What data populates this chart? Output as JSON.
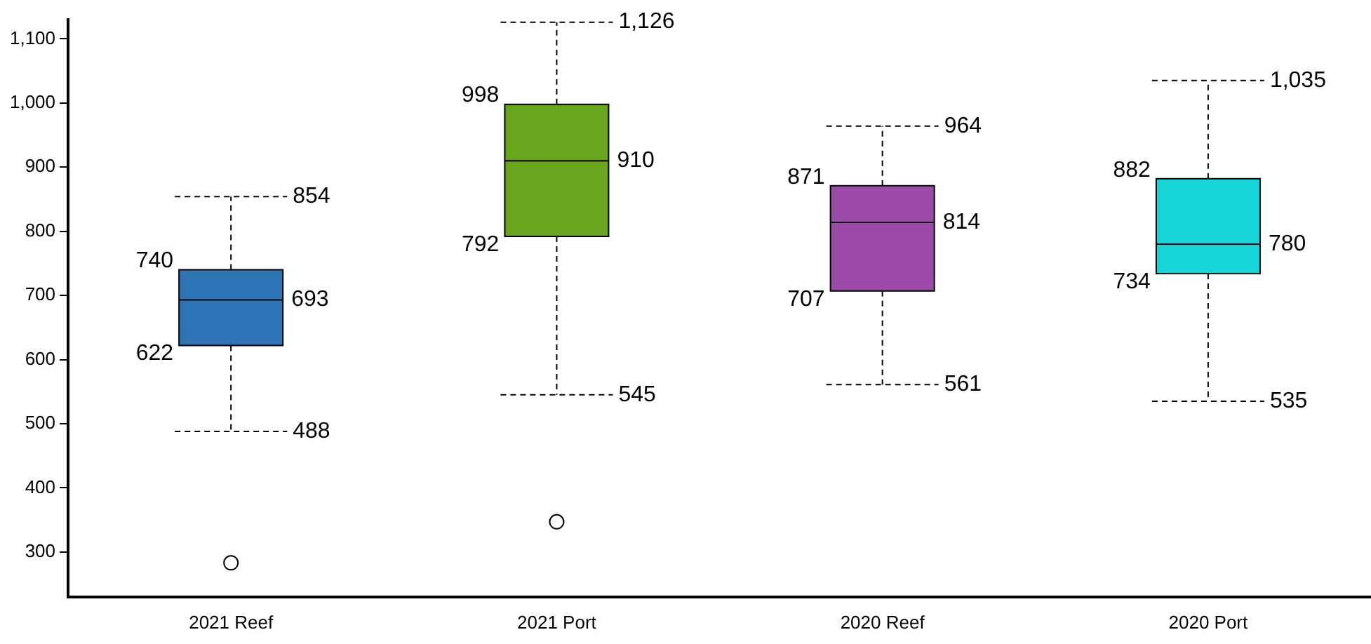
{
  "chart_data": {
    "type": "box",
    "categories": [
      "2021 Reef",
      "2021 Port",
      "2020 Reef",
      "2020 Port"
    ],
    "colors": [
      "#2e75b6",
      "#66a51c",
      "#9b4aa8",
      "#17d4d8"
    ],
    "boxes": [
      {
        "low": 488,
        "q1": 622,
        "median": 693,
        "q3": 740,
        "high": 854,
        "outliers": [
          283
        ]
      },
      {
        "low": 545,
        "q1": 792,
        "median": 910,
        "q3": 998,
        "high": 1126,
        "outliers": [
          347
        ]
      },
      {
        "low": 561,
        "q1": 707,
        "median": 814,
        "q3": 871,
        "high": 964
      },
      {
        "low": 535,
        "q1": 734,
        "median": 780,
        "q3": 882,
        "high": 1035
      }
    ],
    "ylim": [
      230,
      1130
    ],
    "yticks": [
      {
        "value": 300,
        "label": "300"
      },
      {
        "value": 400,
        "label": "400"
      },
      {
        "value": 500,
        "label": "500"
      },
      {
        "value": 600,
        "label": "600"
      },
      {
        "value": 700,
        "label": "700"
      },
      {
        "value": 800,
        "label": "800"
      },
      {
        "value": 900,
        "label": "900"
      },
      {
        "value": 1000,
        "label": "1,000"
      },
      {
        "value": 1100,
        "label": "1,100"
      }
    ],
    "annotations": [
      {
        "text": "854",
        "x": "2021 Reef",
        "y": 854
      },
      {
        "text": "740",
        "x": "2021 Reef",
        "y": 740
      },
      {
        "text": "693",
        "x": "2021 Reef",
        "y": 693
      },
      {
        "text": "622",
        "x": "2021 Reef",
        "y": 622
      },
      {
        "text": "488",
        "x": "2021 Reef",
        "y": 488
      },
      {
        "text": "1,126",
        "x": "2021 Port",
        "y": 1126
      },
      {
        "text": "998",
        "x": "2021 Port",
        "y": 998
      },
      {
        "text": "910",
        "x": "2021 Port",
        "y": 910
      },
      {
        "text": "792",
        "x": "2021 Port",
        "y": 792
      },
      {
        "text": "545",
        "x": "2021 Port",
        "y": 545
      },
      {
        "text": "964",
        "x": "2020 Reef",
        "y": 964
      },
      {
        "text": "871",
        "x": "2020 Reef",
        "y": 871
      },
      {
        "text": "814",
        "x": "2020 Reef",
        "y": 814
      },
      {
        "text": "707",
        "x": "2020 Reef",
        "y": 707
      },
      {
        "text": "561",
        "x": "2020 Reef",
        "y": 561
      },
      {
        "text": "1,035",
        "x": "2020 Port",
        "y": 1035
      },
      {
        "text": "882",
        "x": "2020 Port",
        "y": 882
      },
      {
        "text": "780",
        "x": "2020 Port",
        "y": 780
      },
      {
        "text": "734",
        "x": "2020 Port",
        "y": 734
      },
      {
        "text": "535",
        "x": "2020 Port",
        "y": 535
      }
    ],
    "grid": false,
    "legend": false,
    "line_style": "dashed"
  }
}
